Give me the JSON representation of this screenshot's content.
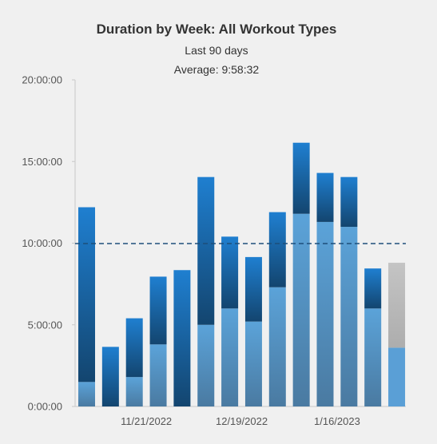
{
  "chart_data": {
    "type": "bar",
    "stacked": true,
    "title": "Duration by Week: All Workout Types",
    "subtitle": "Last 90 days",
    "average_label": "Average: 9:58:32",
    "average_hours": 9.976,
    "ylim": [
      0,
      20
    ],
    "y_ticks": [
      "0:00:00",
      "5:00:00",
      "10:00:00",
      "15:00:00",
      "20:00:00"
    ],
    "x_tick_labels": [
      {
        "label": "11/21/2022",
        "index": 3
      },
      {
        "label": "12/19/2022",
        "index": 7
      },
      {
        "label": "1/16/2023",
        "index": 11
      }
    ],
    "weeks": 14,
    "series": [
      {
        "values": [
          1.5,
          0,
          1.8,
          3.8,
          0,
          5.0,
          6.0,
          5.2,
          7.3,
          11.8,
          11.3,
          11.0,
          6.0,
          3.6
        ]
      },
      {
        "values": [
          10.7,
          3.65,
          3.6,
          4.15,
          8.35,
          9.05,
          4.4,
          3.95,
          4.6,
          4.35,
          3.0,
          3.05,
          2.45,
          5.2
        ]
      }
    ],
    "colors": {
      "lower_top": "#5ba3d9",
      "lower_bottom": "#4a7aa1",
      "upper_top": "#1f7fd0",
      "upper_bottom": "#13456f",
      "partial_lower": "#5a9fd6",
      "partial_upper_top": "#c4c4c4",
      "partial_upper_bottom": "#adadad",
      "average_line": "#1d4f7a",
      "axis": "#c9c9c9"
    },
    "partial_last_week": true
  }
}
